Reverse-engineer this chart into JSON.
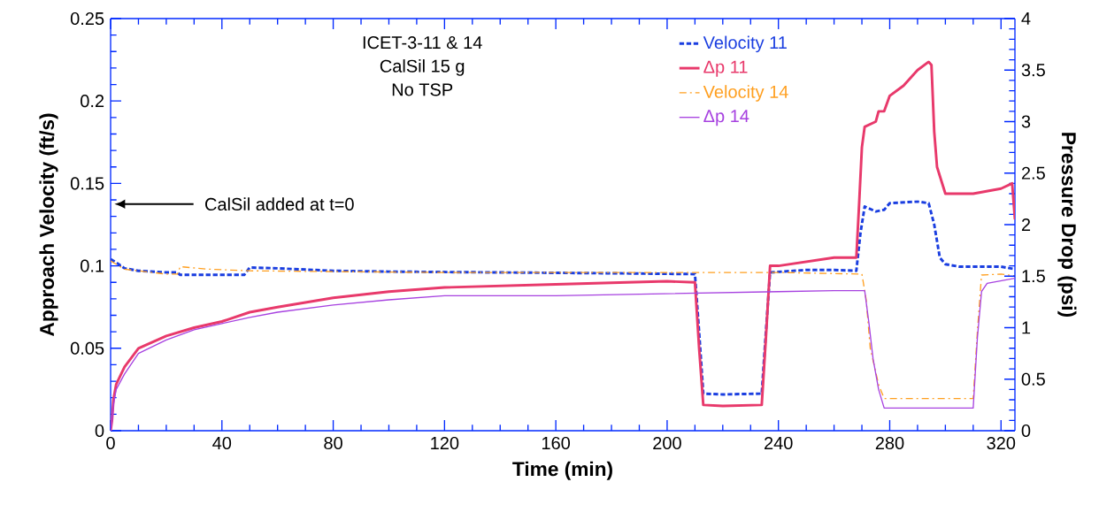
{
  "chart_data": {
    "type": "line",
    "xlabel": "Time (min)",
    "ylabel": "Approach Velocity (ft/s)",
    "y2label": "Pressure Drop (psi)",
    "xlim": [
      0,
      325
    ],
    "xticks": [
      0,
      40,
      80,
      120,
      160,
      200,
      240,
      280,
      320
    ],
    "ylim": [
      0,
      0.25
    ],
    "yticks": [
      0,
      0.05,
      0.1,
      0.15,
      0.2,
      0.25
    ],
    "y2lim": [
      0,
      4
    ],
    "y2ticks": [
      0,
      0.5,
      1,
      1.5,
      2,
      2.5,
      3,
      3.5,
      4
    ],
    "legend": "top",
    "marker": "none",
    "grid": false,
    "annotations": [
      "ICET-3-11 & 14",
      "CalSil 15 g",
      "No TSP",
      "CalSil added at t=0"
    ],
    "series": [
      {
        "name": "Velocity 11",
        "color": "#1a3ee0",
        "line_style": "dashed",
        "axis": "y",
        "x": [
          0,
          2,
          5,
          10,
          20,
          24,
          25,
          35,
          48,
          50,
          60,
          80,
          100,
          140,
          180,
          210,
          211.5,
          213,
          220,
          234,
          235.5,
          237,
          250,
          260,
          268,
          269.5,
          271,
          275,
          278,
          280,
          290,
          294,
          296,
          298,
          300,
          305,
          320,
          325
        ],
        "values": [
          0.104,
          0.102,
          0.0985,
          0.097,
          0.096,
          0.096,
          0.0945,
          0.0945,
          0.0945,
          0.099,
          0.0985,
          0.097,
          0.0965,
          0.096,
          0.0955,
          0.095,
          0.06,
          0.0225,
          0.022,
          0.0225,
          0.06,
          0.096,
          0.0975,
          0.0975,
          0.097,
          0.12,
          0.136,
          0.133,
          0.134,
          0.138,
          0.139,
          0.138,
          0.125,
          0.105,
          0.101,
          0.0995,
          0.0995,
          0.098
        ]
      },
      {
        "name": "Δp 11",
        "color": "#e8396b",
        "line_style": "solid",
        "axis": "y2",
        "x": [
          0,
          0.5,
          1,
          2,
          5,
          10,
          20,
          30,
          40,
          50,
          60,
          80,
          100,
          120,
          160,
          200,
          210,
          211.5,
          213,
          220,
          234,
          235.5,
          237,
          240,
          260,
          268,
          269,
          270,
          271,
          275,
          276,
          278,
          280,
          285,
          290,
          294,
          295,
          296,
          297,
          300,
          310,
          320,
          324,
          325
        ],
        "values": [
          0,
          0.1,
          0.3,
          0.45,
          0.62,
          0.8,
          0.92,
          1.0,
          1.06,
          1.15,
          1.2,
          1.29,
          1.35,
          1.39,
          1.42,
          1.45,
          1.44,
          0.8,
          0.25,
          0.24,
          0.25,
          0.9,
          1.6,
          1.6,
          1.68,
          1.68,
          2.2,
          2.75,
          2.95,
          3.0,
          3.1,
          3.1,
          3.25,
          3.35,
          3.5,
          3.58,
          3.55,
          2.9,
          2.56,
          2.3,
          2.3,
          2.35,
          2.4,
          2.05
        ]
      },
      {
        "name": "Velocity 14",
        "color": "#ff9f1f",
        "line_style": "dotted",
        "axis": "y",
        "x": [
          0,
          2,
          5,
          10,
          20,
          24,
          25,
          35,
          50,
          80,
          120,
          160,
          200,
          240,
          270,
          271.5,
          273,
          276,
          278,
          290,
          310,
          311.5,
          313,
          320,
          325
        ],
        "values": [
          0.103,
          0.101,
          0.098,
          0.097,
          0.095,
          0.095,
          0.0995,
          0.098,
          0.097,
          0.0965,
          0.096,
          0.096,
          0.096,
          0.096,
          0.095,
          0.08,
          0.05,
          0.028,
          0.0195,
          0.0195,
          0.0195,
          0.06,
          0.0944,
          0.095,
          0.094
        ]
      },
      {
        "name": "Δp 14",
        "color": "#a742e0",
        "line_style": "solid",
        "axis": "y2",
        "x": [
          0,
          0.5,
          1,
          2,
          5,
          10,
          20,
          30,
          40,
          50,
          60,
          80,
          100,
          120,
          160,
          200,
          240,
          260,
          271,
          272.5,
          274,
          276,
          278,
          290,
          310,
          311.5,
          313,
          315,
          325
        ],
        "values": [
          0,
          0.1,
          0.25,
          0.4,
          0.55,
          0.75,
          0.88,
          0.98,
          1.04,
          1.1,
          1.15,
          1.22,
          1.27,
          1.31,
          1.31,
          1.33,
          1.35,
          1.36,
          1.36,
          1.05,
          0.7,
          0.4,
          0.22,
          0.22,
          0.22,
          0.9,
          1.35,
          1.43,
          1.48
        ]
      }
    ]
  }
}
